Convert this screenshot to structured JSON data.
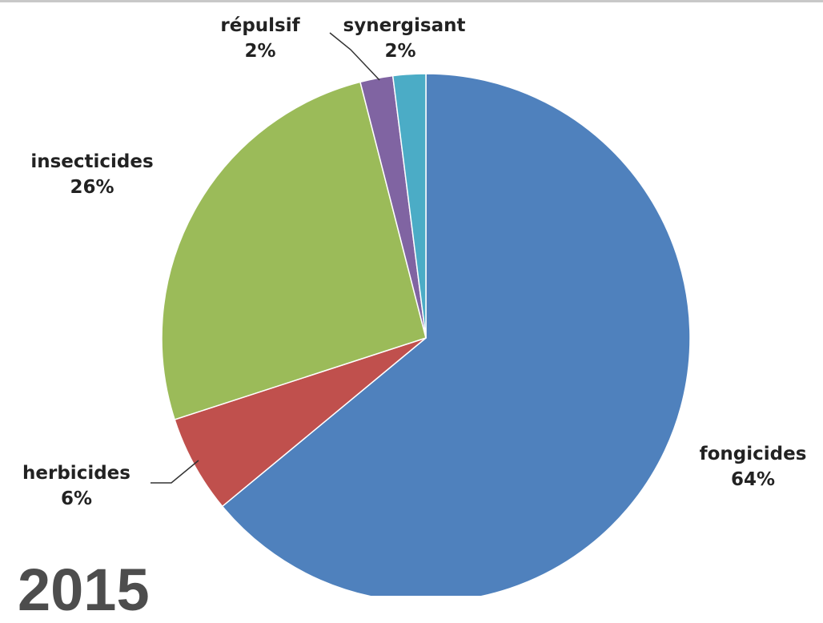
{
  "chart_data": {
    "type": "pie",
    "slices": [
      {
        "label": "fongicides",
        "value": 64,
        "value_label": "64%",
        "color": "#4F81BD"
      },
      {
        "label": "herbicides",
        "value": 6,
        "value_label": "6%",
        "color": "#C0504D"
      },
      {
        "label": "insecticides",
        "value": 26,
        "value_label": "26%",
        "color": "#9BBB59"
      },
      {
        "label": "répulsif",
        "value": 2,
        "value_label": "2%",
        "color": "#8064A2"
      },
      {
        "label": "synergisant",
        "value": 2,
        "value_label": "2%",
        "color": "#4BACC6"
      }
    ],
    "legend": "none"
  },
  "year_text": "2015"
}
